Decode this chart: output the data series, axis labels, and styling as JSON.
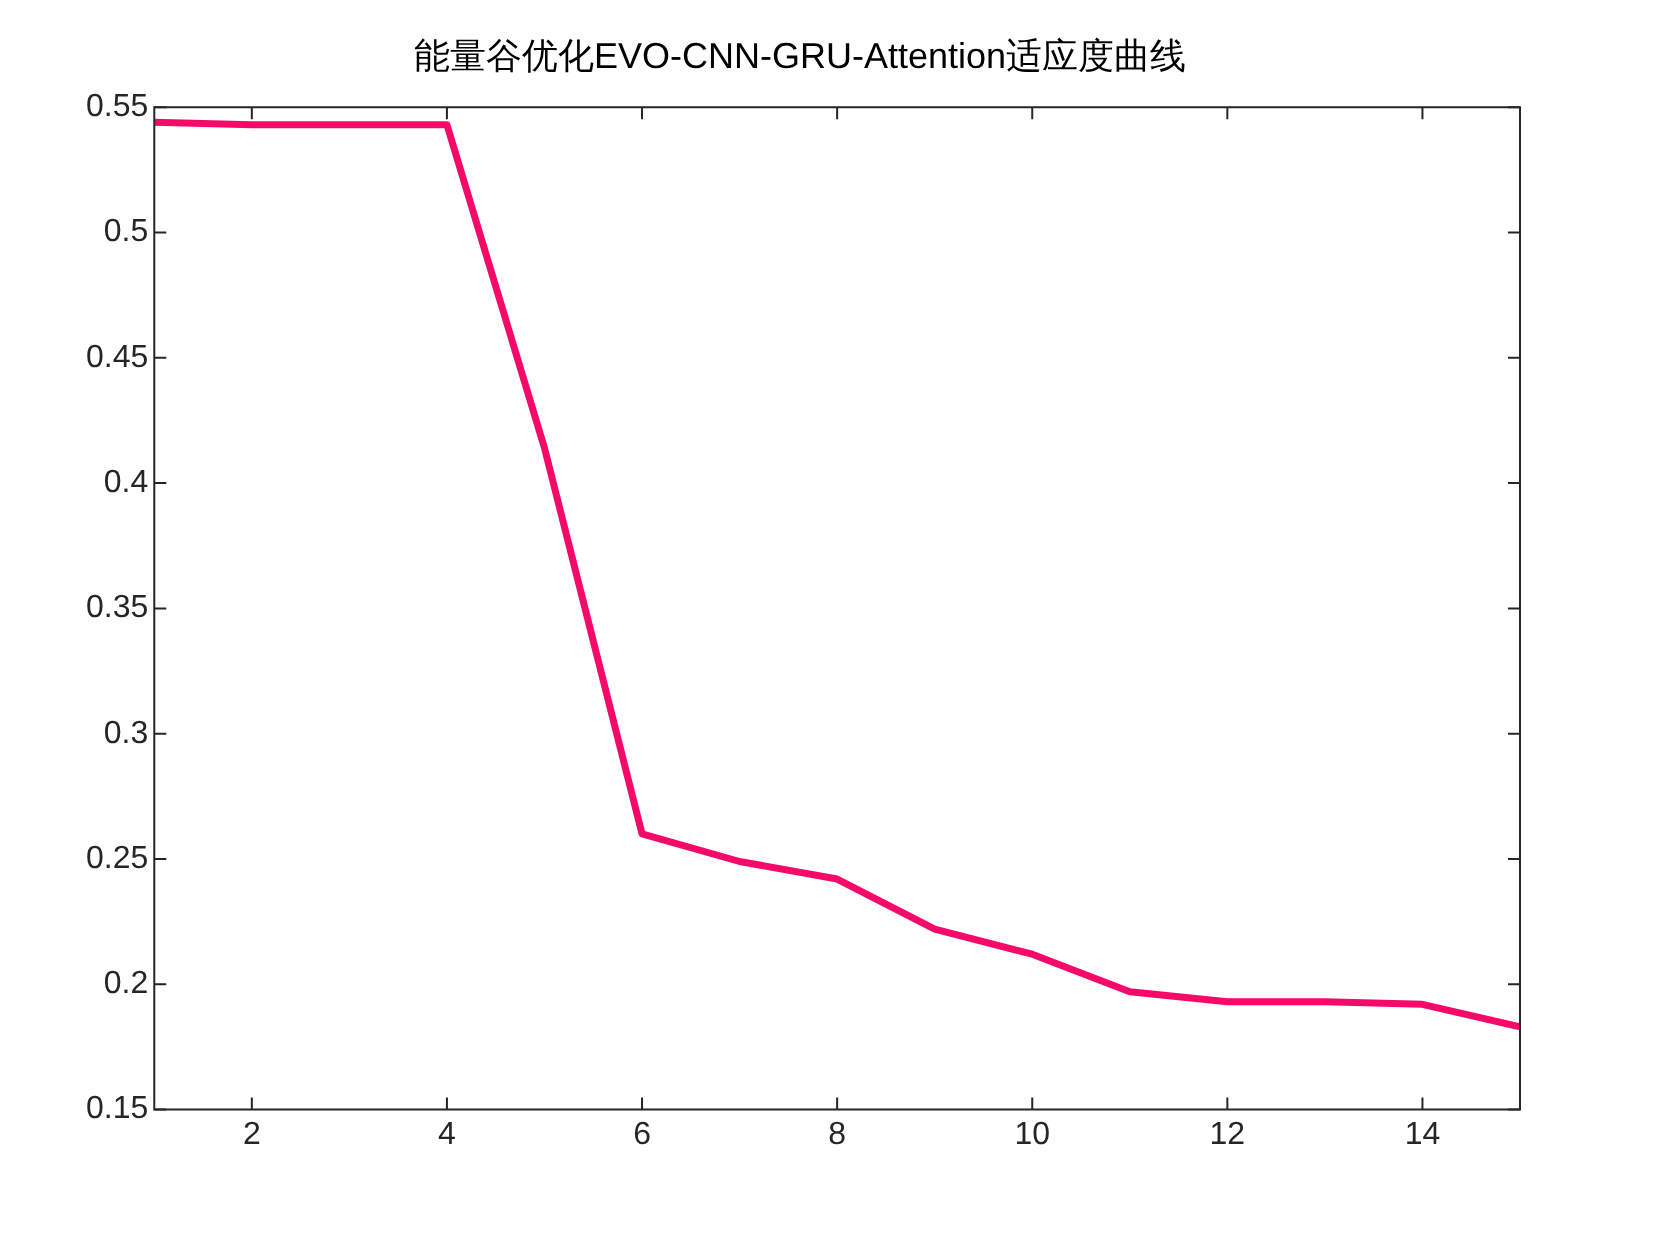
{
  "chart_data": {
    "type": "line",
    "title": "能量谷优化EVO-CNN-GRU-Attention适应度曲线",
    "x": [
      1,
      2,
      3,
      4,
      5,
      6,
      7,
      8,
      9,
      10,
      11,
      12,
      13,
      14,
      15
    ],
    "series": [
      {
        "color": "#f50a6a",
        "values": [
          0.544,
          0.543,
          0.543,
          0.543,
          0.414,
          0.26,
          0.249,
          0.242,
          0.222,
          0.212,
          0.197,
          0.193,
          0.193,
          0.192,
          0.183
        ]
      }
    ],
    "xlim": [
      1,
      15
    ],
    "xticks": [
      2,
      4,
      6,
      8,
      10,
      12,
      14
    ],
    "ylim": [
      0.15,
      0.55
    ],
    "yticks": [
      0.15,
      0.2,
      0.25,
      0.3,
      0.35,
      0.4,
      0.45,
      0.5,
      0.55
    ],
    "grid": false,
    "legend": false,
    "marker": "none",
    "line_style": "solid"
  }
}
